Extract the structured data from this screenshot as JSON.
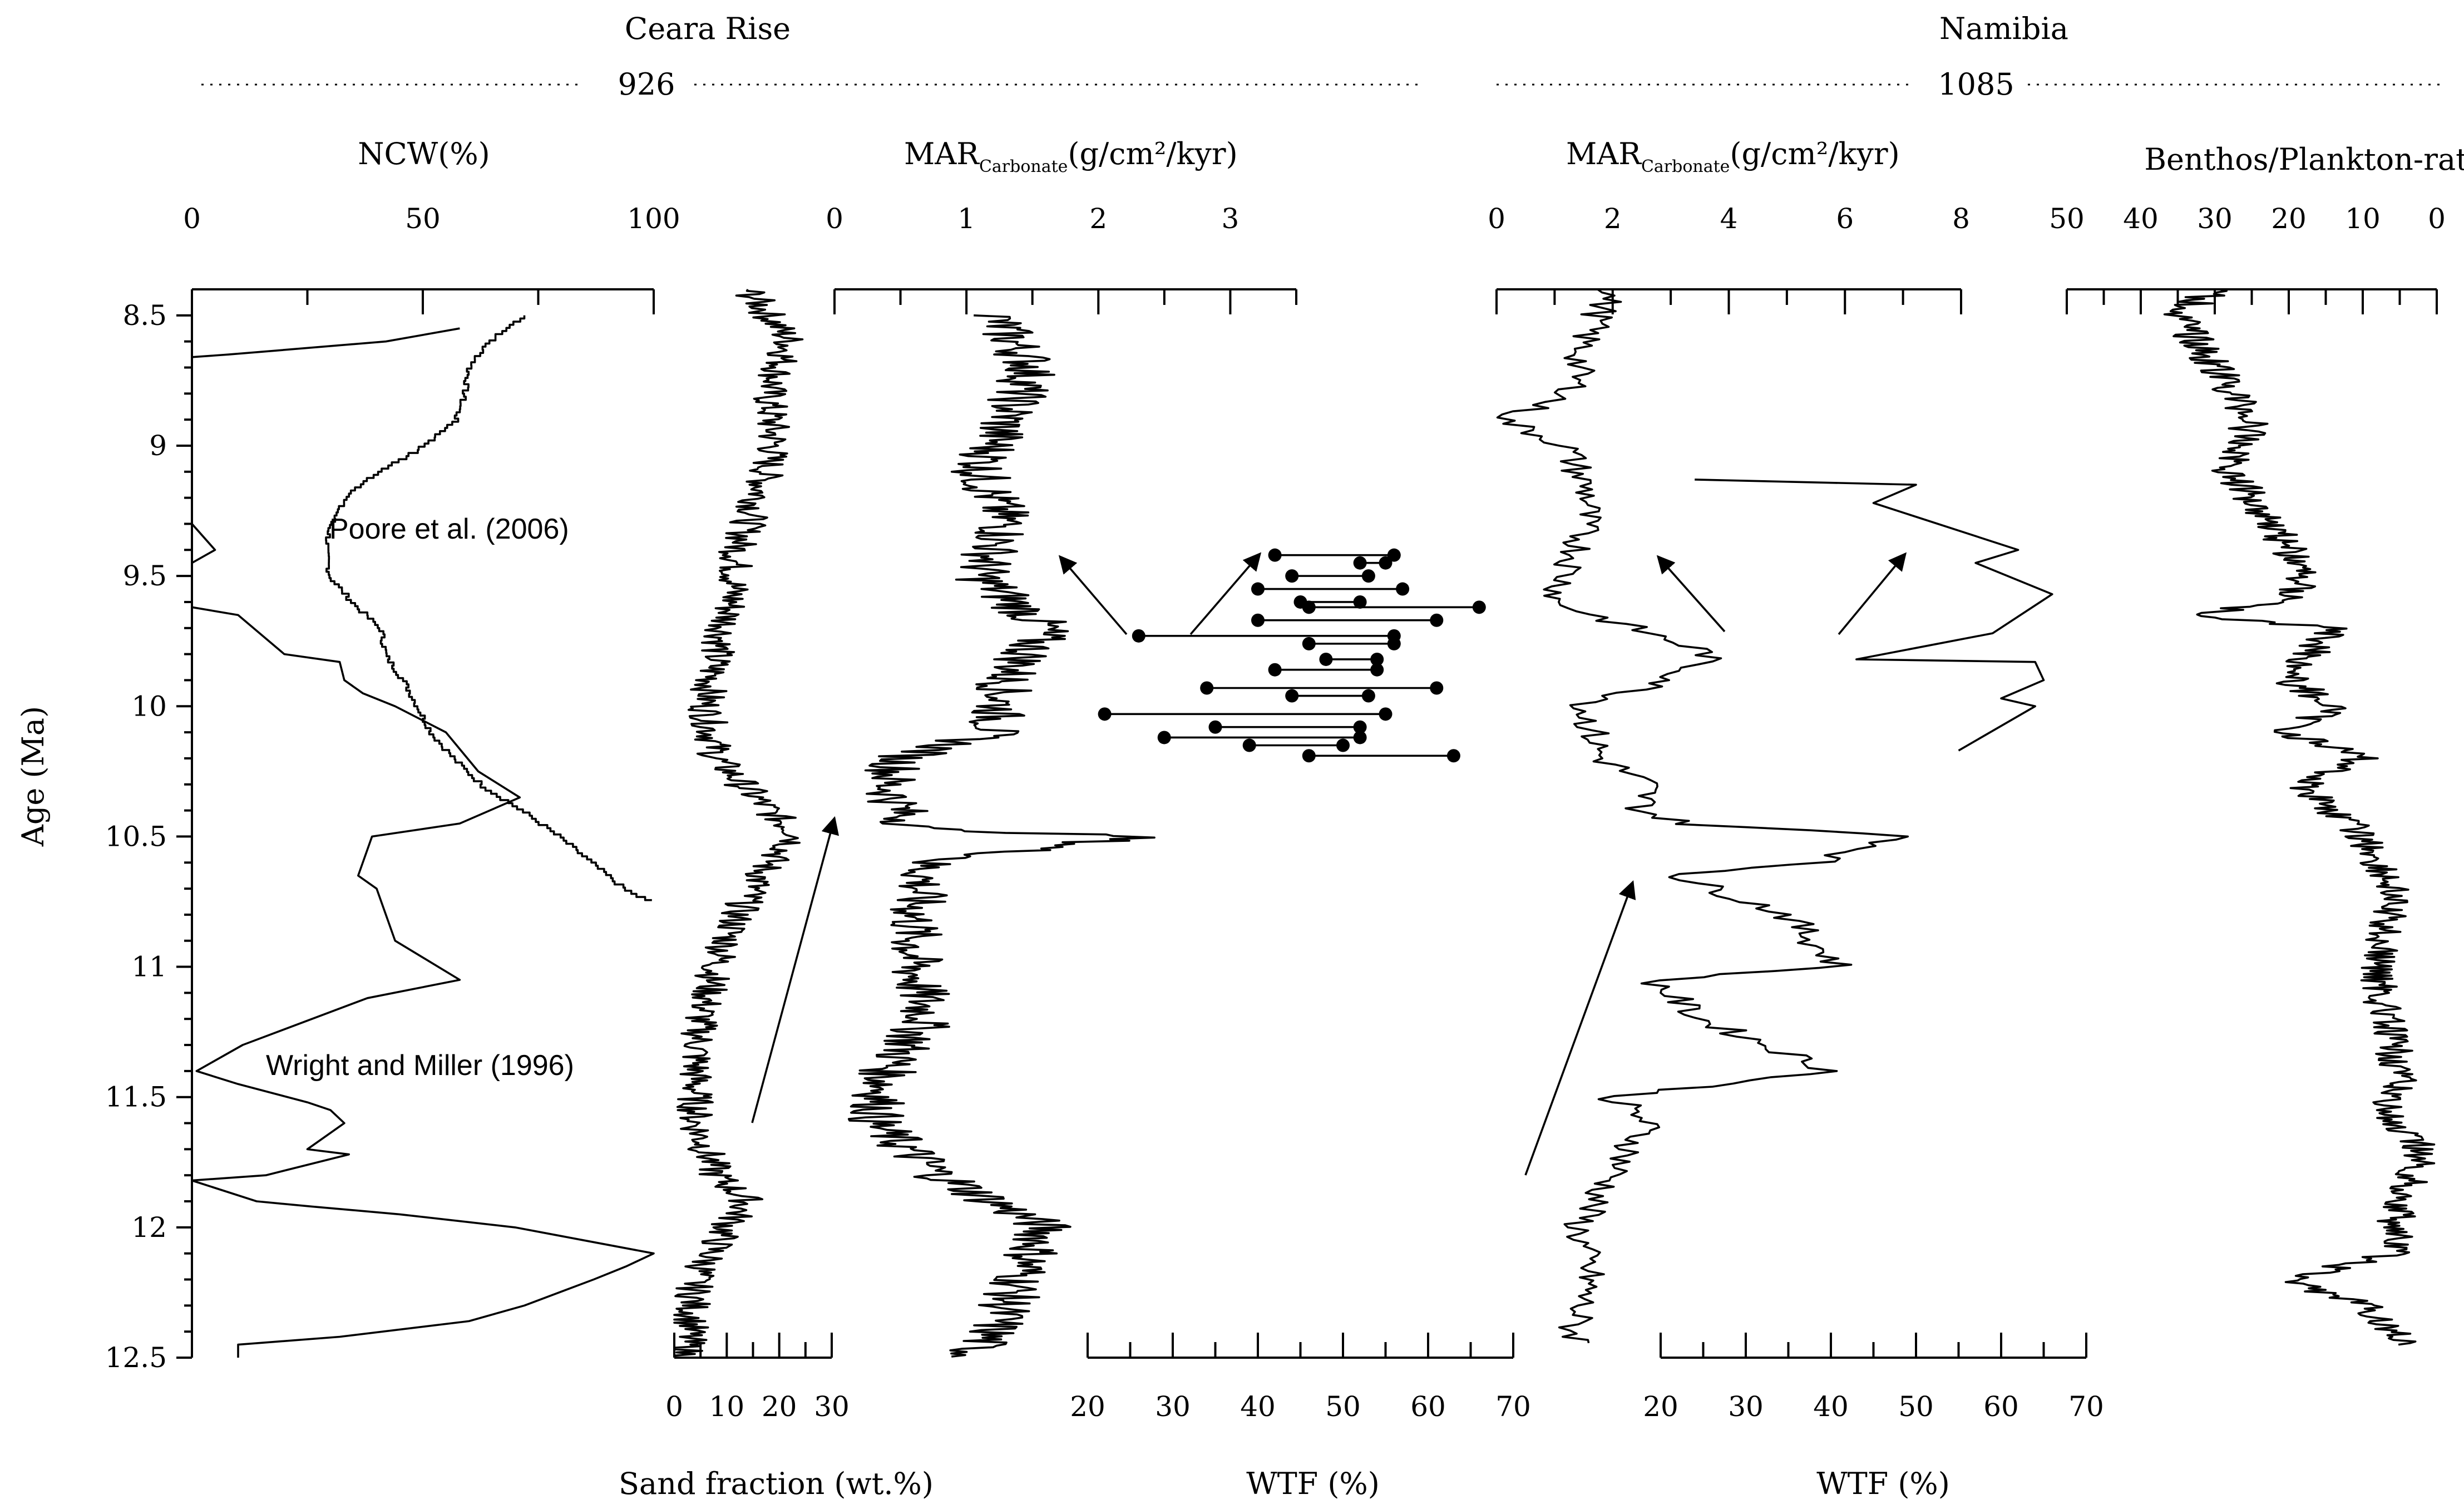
{
  "chart_data": {
    "type": "line",
    "sites": [
      {
        "name": "Ceara Rise",
        "core": "926"
      },
      {
        "name": "Namibia",
        "core": "1085"
      }
    ],
    "ylabel": "Age (Ma)",
    "ylim": [
      8.4,
      12.5
    ],
    "yticks": [
      "8.5",
      "9",
      "9.5",
      "10",
      "10.5",
      "11",
      "11.5",
      "12",
      "12.5"
    ],
    "panels": [
      {
        "title": "NCW(%)",
        "xlim": [
          0,
          100
        ],
        "xticks": [
          "0",
          "50",
          "100"
        ],
        "annotations": [
          "Poore et al. (2006)",
          "Wright and Miller (1996)"
        ],
        "series": [
          {
            "age": [
              8.5,
              8.6,
              8.7,
              8.8,
              8.9,
              9.0,
              9.1,
              9.2,
              9.3,
              9.4,
              9.5,
              9.6,
              9.7,
              9.8,
              9.9,
              10.0,
              10.1,
              10.2,
              10.3,
              10.4,
              10.5,
              10.6,
              10.7,
              10.75
            ],
            "ncw": [
              72,
              64,
              60,
              59,
              57,
              50,
              40,
              33,
              30,
              29,
              30,
              35,
              41,
              42,
              46,
              49,
              52,
              57,
              63,
              72,
              80,
              87,
              94,
              100
            ]
          },
          {
            "age": [
              8.55,
              8.6,
              8.65,
              8.66,
              9.3,
              9.4,
              9.45,
              9.6,
              9.62,
              9.65,
              9.8,
              9.83,
              9.9,
              9.95,
              10.0,
              10.1,
              10.25,
              10.35,
              10.45,
              10.5,
              10.65,
              10.7,
              10.9,
              11.05,
              11.12,
              11.3,
              11.4,
              11.45,
              11.52,
              11.55,
              11.6,
              11.7,
              11.72,
              11.8,
              11.82,
              11.9,
              11.92,
              11.95,
              12.0,
              12.05,
              12.1,
              12.15,
              12.2,
              12.3,
              12.36,
              12.42,
              12.45,
              12.5
            ],
            "ncw": [
              58,
              42,
              8,
              0,
              0,
              5,
              0,
              0,
              0,
              10,
              20,
              32,
              33,
              37,
              44,
              55,
              62,
              71,
              58,
              39,
              36,
              40,
              44,
              58,
              38,
              11,
              1,
              10,
              25,
              30,
              33,
              25,
              34,
              16,
              0,
              14,
              26,
              45,
              70,
              85,
              100,
              94,
              87,
              72,
              60,
              32,
              10,
              10
            ]
          }
        ]
      },
      {
        "title": "Sand fraction (wt.%)",
        "xlim": [
          0,
          30
        ],
        "xticks": [
          "0",
          "10",
          "20",
          "30"
        ],
        "series": [
          {
            "age": [
              8.4,
              8.6,
              8.8,
              9.0,
              9.2,
              9.4,
              9.6,
              9.8,
              10.0,
              10.2,
              10.4,
              10.5,
              10.6,
              10.8,
              11.0,
              11.2,
              11.4,
              11.6,
              11.8,
              11.9,
              12.0,
              12.2,
              12.4,
              12.5
            ],
            "sand": [
              14,
              22,
              18,
              19,
              16,
              12,
              11,
              8,
              6,
              8,
              18,
              24,
              18,
              12,
              8,
              5,
              4,
              4,
              8,
              14,
              10,
              4,
              3,
              2
            ]
          }
        ]
      },
      {
        "title": "MARCarbonate(g/cm²/kyr)",
        "site": "926",
        "xlim": [
          0,
          3.5
        ],
        "xticks": [
          "0",
          "1",
          "2",
          "3"
        ],
        "series": [
          {
            "age": [
              8.5,
              8.7,
              8.9,
              9.1,
              9.3,
              9.5,
              9.7,
              9.9,
              10.1,
              10.2,
              10.3,
              10.4,
              10.47,
              10.5,
              10.6,
              10.8,
              11.0,
              11.2,
              11.4,
              11.6,
              11.8,
              11.9,
              12.0,
              12.2,
              12.4,
              12.5
            ],
            "mar": [
              1.2,
              1.5,
              1.3,
              1.1,
              1.3,
              1.1,
              1.6,
              1.3,
              1.2,
              0.5,
              0.4,
              0.5,
              0.6,
              2.3,
              0.7,
              0.6,
              0.6,
              0.7,
              0.4,
              0.3,
              0.8,
              1.2,
              1.6,
              1.4,
              1.2,
              1.0
            ]
          }
        ]
      },
      {
        "title": "WTF (%)",
        "site": "926",
        "xlim": [
          20,
          70
        ],
        "xticks": [
          "20",
          "30",
          "40",
          "50",
          "60",
          "70"
        ],
        "pairs": [
          {
            "age": 9.42,
            "left": 42,
            "right": 56
          },
          {
            "age": 9.45,
            "left": 52,
            "right": 55
          },
          {
            "age": 9.5,
            "left": 44,
            "right": 53
          },
          {
            "age": 9.55,
            "left": 40,
            "right": 57
          },
          {
            "age": 9.6,
            "left": 45,
            "right": 52
          },
          {
            "age": 9.62,
            "left": 46,
            "right": 66
          },
          {
            "age": 9.67,
            "left": 40,
            "right": 61
          },
          {
            "age": 9.73,
            "left": 26,
            "right": 56
          },
          {
            "age": 9.76,
            "left": 46,
            "right": 56
          },
          {
            "age": 9.82,
            "left": 48,
            "right": 54
          },
          {
            "age": 9.86,
            "left": 42,
            "right": 54
          },
          {
            "age": 9.93,
            "left": 34,
            "right": 61
          },
          {
            "age": 9.96,
            "left": 44,
            "right": 53
          },
          {
            "age": 10.03,
            "left": 22,
            "right": 55
          },
          {
            "age": 10.08,
            "left": 35,
            "right": 52
          },
          {
            "age": 10.12,
            "left": 29,
            "right": 52
          },
          {
            "age": 10.15,
            "left": 39,
            "right": 50
          },
          {
            "age": 10.19,
            "left": 46,
            "right": 63
          }
        ]
      },
      {
        "title": "MARCarbonate(g/cm²/kyr)",
        "site": "1085",
        "xlim": [
          0,
          8
        ],
        "xticks": [
          "0",
          "2",
          "4",
          "6",
          "8"
        ],
        "series": [
          {
            "age": [
              8.4,
              8.6,
              8.8,
              8.9,
              9.0,
              9.2,
              9.4,
              9.6,
              9.8,
              9.9,
              10.0,
              10.2,
              10.3,
              10.4,
              10.45,
              10.5,
              10.6,
              10.65,
              10.8,
              11.0,
              11.05,
              11.2,
              11.4,
              11.5,
              11.6,
              11.8,
              12.0,
              12.2,
              12.4,
              12.45
            ],
            "mar": [
              2.0,
              1.5,
              1.3,
              0.1,
              1.2,
              1.6,
              1.4,
              1.0,
              3.7,
              3.0,
              1.5,
              1.8,
              2.6,
              2.5,
              3.2,
              7.1,
              5.5,
              3.1,
              5.0,
              5.9,
              2.7,
              3.5,
              5.8,
              2.0,
              2.6,
              2.0,
              1.4,
              1.6,
              1.3,
              1.5
            ]
          }
        ]
      },
      {
        "title": "WTF (%)",
        "site": "1085",
        "xlim": [
          20,
          70
        ],
        "xticks": [
          "20",
          "30",
          "40",
          "50",
          "60",
          "70"
        ],
        "series": [
          {
            "age": [
              9.13,
              9.15,
              9.22,
              9.4,
              9.45,
              9.57,
              9.72,
              9.82,
              9.83,
              9.9,
              9.97,
              10.0,
              10.17
            ],
            "wtf": [
              24,
              50,
              45,
              62,
              57,
              66,
              59,
              43,
              64,
              65,
              60,
              64,
              55
            ]
          }
        ]
      },
      {
        "title": "Benthos/Plankton-ratio",
        "xlim": [
          50,
          0
        ],
        "xticks": [
          "50",
          "40",
          "30",
          "20",
          "10",
          "0"
        ],
        "series": [
          {
            "age": [
              8.4,
              8.5,
              8.7,
              8.9,
              9.1,
              9.3,
              9.5,
              9.6,
              9.65,
              9.7,
              9.9,
              10.0,
              10.1,
              10.2,
              10.3,
              10.5,
              10.7,
              11.0,
              11.2,
              11.4,
              11.6,
              11.7,
              11.9,
              12.1,
              12.2,
              12.3,
              12.45
            ],
            "ratio": [
              30,
              35,
              30,
              25,
              28,
              22,
              18,
              20,
              34,
              14,
              20,
              14,
              20,
              10,
              18,
              10,
              6,
              8,
              7,
              5,
              7,
              2,
              5,
              6,
              20,
              10,
              4
            ]
          }
        ]
      }
    ]
  }
}
